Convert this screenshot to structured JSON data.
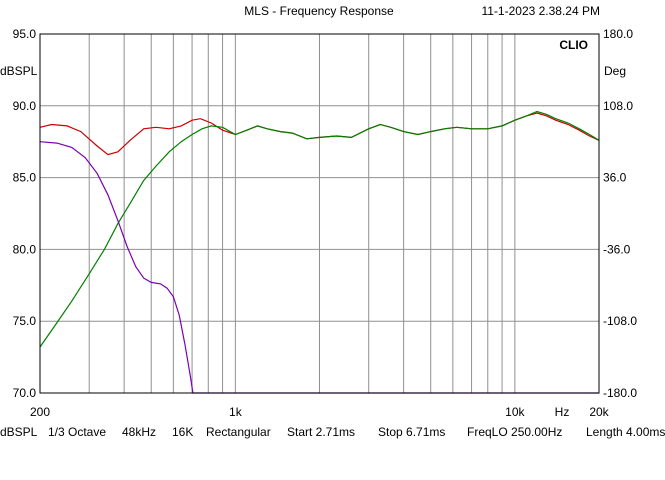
{
  "header": {
    "title": "MLS - Frequency Response",
    "timestamp": "11-1-2023 2.38.24 PM",
    "brand": "CLIO"
  },
  "chart_data": {
    "type": "line",
    "title": "MLS - Frequency Response",
    "x_scale": "log",
    "xlim": [
      200,
      20000
    ],
    "ylim": [
      70,
      95
    ],
    "y2lim": [
      -180,
      180
    ],
    "xlabel": "Hz",
    "ylabel": "dBSPL",
    "y2label": "Deg",
    "y_ticks": [
      "95.0",
      "90.0",
      "85.0",
      "80.0",
      "75.0",
      "70.0"
    ],
    "y2_ticks": [
      "180.0",
      "108.0",
      "36.0",
      "-36.0",
      "-108.0",
      "-180.0"
    ],
    "x_ticks": [
      {
        "value": 200,
        "label": "200"
      },
      {
        "value": 1000,
        "label": "1k"
      },
      {
        "value": 10000,
        "label": "10k"
      },
      {
        "value": 20000,
        "label": "20k"
      }
    ],
    "grid": true,
    "series": [
      {
        "color": "#cc0000",
        "axis": "left",
        "points": [
          [
            200,
            88.5
          ],
          [
            220,
            88.7
          ],
          [
            250,
            88.6
          ],
          [
            280,
            88.2
          ],
          [
            320,
            87.2
          ],
          [
            350,
            86.6
          ],
          [
            380,
            86.8
          ],
          [
            420,
            87.6
          ],
          [
            470,
            88.4
          ],
          [
            520,
            88.5
          ],
          [
            580,
            88.4
          ],
          [
            640,
            88.6
          ],
          [
            700,
            89.0
          ],
          [
            750,
            89.1
          ],
          [
            820,
            88.8
          ],
          [
            900,
            88.3
          ],
          [
            1000,
            88.0
          ],
          [
            1100,
            88.3
          ],
          [
            1200,
            88.6
          ],
          [
            1300,
            88.4
          ],
          [
            1450,
            88.2
          ],
          [
            1600,
            88.1
          ],
          [
            1800,
            87.7
          ],
          [
            2000,
            87.8
          ],
          [
            2300,
            87.9
          ],
          [
            2600,
            87.8
          ],
          [
            3000,
            88.4
          ],
          [
            3300,
            88.7
          ],
          [
            3600,
            88.5
          ],
          [
            4000,
            88.2
          ],
          [
            4500,
            88.0
          ],
          [
            5000,
            88.2
          ],
          [
            5600,
            88.4
          ],
          [
            6200,
            88.5
          ],
          [
            7000,
            88.4
          ],
          [
            8000,
            88.4
          ],
          [
            9000,
            88.6
          ],
          [
            10000,
            89.0
          ],
          [
            11000,
            89.3
          ],
          [
            12000,
            89.5
          ],
          [
            13000,
            89.3
          ],
          [
            14000,
            89.0
          ],
          [
            15500,
            88.7
          ],
          [
            17000,
            88.3
          ],
          [
            18500,
            87.9
          ],
          [
            20000,
            87.6
          ]
        ]
      },
      {
        "color": "#008000",
        "axis": "left",
        "points": [
          [
            200,
            73.2
          ],
          [
            230,
            74.9
          ],
          [
            260,
            76.4
          ],
          [
            300,
            78.3
          ],
          [
            340,
            80.0
          ],
          [
            380,
            81.8
          ],
          [
            420,
            83.2
          ],
          [
            470,
            84.8
          ],
          [
            520,
            85.8
          ],
          [
            580,
            86.8
          ],
          [
            640,
            87.5
          ],
          [
            700,
            88.0
          ],
          [
            760,
            88.4
          ],
          [
            820,
            88.6
          ],
          [
            900,
            88.5
          ],
          [
            1000,
            88.0
          ],
          [
            1100,
            88.3
          ],
          [
            1200,
            88.6
          ],
          [
            1300,
            88.4
          ],
          [
            1450,
            88.2
          ],
          [
            1600,
            88.1
          ],
          [
            1800,
            87.7
          ],
          [
            2000,
            87.8
          ],
          [
            2300,
            87.9
          ],
          [
            2600,
            87.8
          ],
          [
            3000,
            88.4
          ],
          [
            3300,
            88.7
          ],
          [
            3600,
            88.5
          ],
          [
            4000,
            88.2
          ],
          [
            4500,
            88.0
          ],
          [
            5000,
            88.2
          ],
          [
            5600,
            88.4
          ],
          [
            6200,
            88.5
          ],
          [
            7000,
            88.4
          ],
          [
            8000,
            88.4
          ],
          [
            9000,
            88.6
          ],
          [
            10000,
            89.0
          ],
          [
            11000,
            89.3
          ],
          [
            12000,
            89.6
          ],
          [
            13000,
            89.4
          ],
          [
            14000,
            89.1
          ],
          [
            15500,
            88.8
          ],
          [
            17000,
            88.4
          ],
          [
            18500,
            88.0
          ],
          [
            20000,
            87.6
          ]
        ]
      },
      {
        "color": "#7a00b3",
        "axis": "left",
        "points": [
          [
            200,
            87.5
          ],
          [
            230,
            87.4
          ],
          [
            260,
            87.1
          ],
          [
            290,
            86.4
          ],
          [
            320,
            85.3
          ],
          [
            350,
            83.8
          ],
          [
            380,
            82.0
          ],
          [
            410,
            80.2
          ],
          [
            440,
            78.8
          ],
          [
            470,
            78.0
          ],
          [
            500,
            77.7
          ],
          [
            540,
            77.6
          ],
          [
            570,
            77.3
          ],
          [
            600,
            76.7
          ],
          [
            630,
            75.4
          ],
          [
            660,
            73.4
          ],
          [
            690,
            71.2
          ],
          [
            705,
            70.0
          ],
          [
            20000,
            70.0
          ]
        ]
      }
    ]
  },
  "footer": {
    "unit": "dBSPL",
    "smoothing": "1/3 Octave",
    "sample_rate": "48kHz",
    "size": "16K",
    "window": "Rectangular",
    "start": "Start 2.71ms",
    "stop": "Stop 6.71ms",
    "freq_lo": "FreqLO 250.00Hz",
    "length": "Length 4.00ms"
  }
}
